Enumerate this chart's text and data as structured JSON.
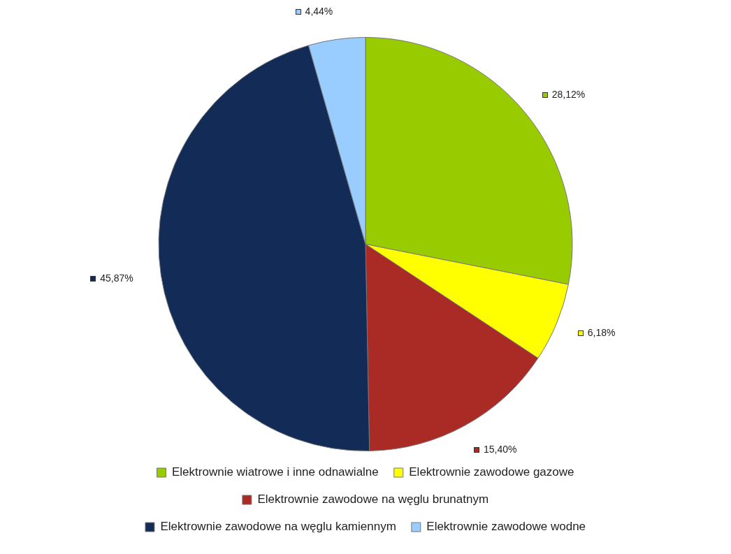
{
  "chart_data": {
    "type": "pie",
    "categories": [
      "Elektrownie wiatrowe i inne odnawialne",
      "Elektrownie zawodowe gazowe",
      "Elektrownie zawodowe na węglu brunatnym",
      "Elektrownie zawodowe na węglu kamiennym",
      "Elektrownie zawodowe wodne"
    ],
    "values": [
      28.12,
      6.18,
      15.4,
      45.87,
      4.44
    ],
    "value_labels": [
      "28,12%",
      "6,18%",
      "15,40%",
      "45,87%",
      "4,44%"
    ],
    "colors": [
      "#99cc00",
      "#ffff00",
      "#aa2a26",
      "#132c57",
      "#99ccff"
    ],
    "legend": "bottom"
  }
}
